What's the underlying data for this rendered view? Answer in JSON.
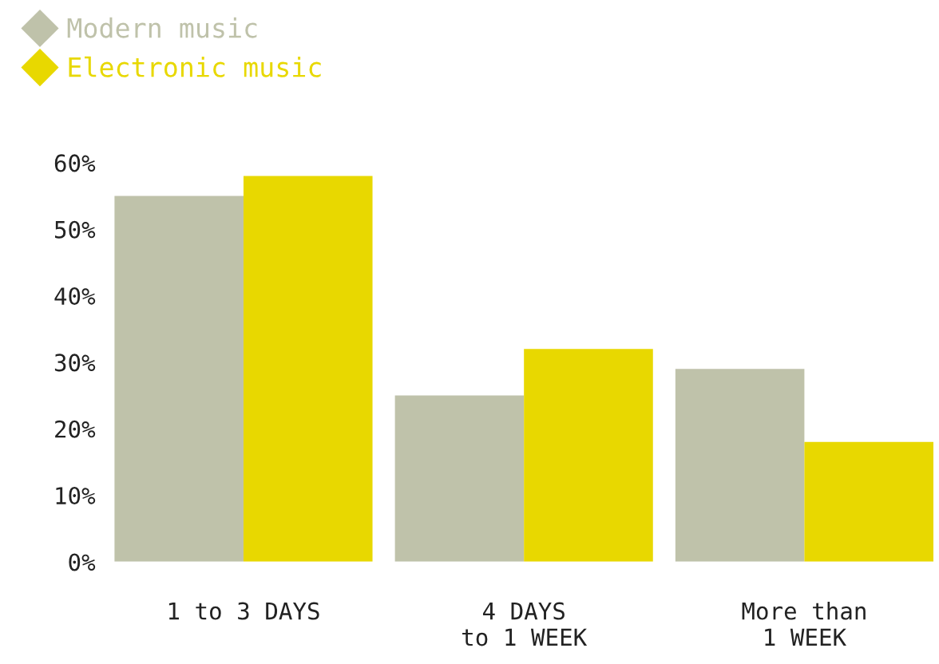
{
  "chart_data": {
    "type": "bar",
    "categories": [
      "1 to 3 DAYS",
      "4 DAYS\nto 1 WEEK",
      "More than\n1 WEEK"
    ],
    "series": [
      {
        "name": "Modern music",
        "color": "#bfc2aa",
        "values": [
          55,
          25,
          29
        ]
      },
      {
        "name": "Electronic music",
        "color": "#e8d800",
        "values": [
          58,
          32,
          18
        ]
      }
    ],
    "ylim": [
      0,
      60
    ],
    "yticks": [
      {
        "value": 0,
        "label": "0%"
      },
      {
        "value": 10,
        "label": "10%"
      },
      {
        "value": 20,
        "label": "20%"
      },
      {
        "value": 30,
        "label": "30%"
      },
      {
        "value": 40,
        "label": "40%"
      },
      {
        "value": 50,
        "label": "50%"
      },
      {
        "value": 60,
        "label": "60%"
      }
    ],
    "grid": false,
    "legend": "top left"
  }
}
